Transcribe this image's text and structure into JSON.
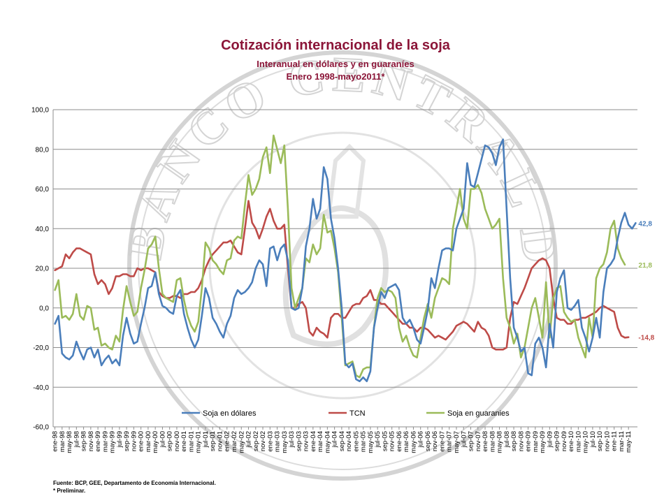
{
  "title": "Cotización internacional de la soja",
  "subtitle1": "Interanual en dólares y en guaraníes",
  "subtitle2": "Enero 1998-mayo2011*",
  "footnote1": "Fuente: BCP, GEE, Departamento de Economía Internacional.",
  "footnote2": "* Preliminar.",
  "watermark": "BANCO CENTRAL DEL PARAGUAY",
  "chart_data": {
    "type": "line",
    "title": "Cotización internacional de la soja",
    "ylim": [
      -60,
      100
    ],
    "yticks": [
      "100,0",
      "80,0",
      "60,0",
      "40,0",
      "20,0",
      "0,0",
      "-20,0",
      "-40,0",
      "-60,0"
    ],
    "ytick_values": [
      100,
      80,
      60,
      40,
      20,
      0,
      -20,
      -40,
      -60
    ],
    "grid": true,
    "legend_position": "bottom",
    "x_tick_labels": [
      "ene-98",
      "mar-98",
      "may-98",
      "jul-98",
      "sep-98",
      "nov-98",
      "ene-99",
      "mar-99",
      "may-99",
      "jul-99",
      "sep-99",
      "nov-99",
      "ene-00",
      "mar-00",
      "may-00",
      "jul-00",
      "sep-00",
      "nov-00",
      "ene-01",
      "mar-01",
      "may-01",
      "jul-01",
      "sep-01",
      "nov-01",
      "ene-02",
      "mar-02",
      "may-02",
      "jul-02",
      "sep-02",
      "nov-02",
      "ene-03",
      "mar-03",
      "may-03",
      "jul-03",
      "sep-03",
      "nov-03",
      "ene-04",
      "mar-04",
      "may-04",
      "jul-04",
      "sep-04",
      "nov-04",
      "ene-05",
      "mar-05",
      "may-05",
      "jul-05",
      "sep-05",
      "nov-05",
      "ene-06",
      "mar-06",
      "may-06",
      "jul-06",
      "sep-06",
      "nov-06",
      "ene-07",
      "mar-07",
      "may-07",
      "jul-07",
      "sep-07",
      "nov-07",
      "ene-08",
      "mar-08",
      "may-08",
      "jul-08",
      "sep-08",
      "nov-08",
      "ene-09",
      "mar-09",
      "may-09",
      "jul-09",
      "sep-09",
      "nov-09",
      "ene-10",
      "mar-10",
      "may-10",
      "jul-10",
      "sep-10",
      "nov-10",
      "ene-11",
      "mar-11",
      "may-11"
    ],
    "series": [
      {
        "name": "Soja en dólares",
        "color": "#4a7ebb",
        "end_label": "42,8",
        "values": [
          -8,
          -4,
          -23,
          -25,
          -26,
          -24,
          -17,
          -22,
          -26,
          -21,
          -20,
          -25,
          -21,
          -29,
          -26,
          -24,
          -28,
          -26,
          -29,
          -14,
          -5,
          -13,
          -18,
          -17,
          -8,
          0,
          10,
          11,
          18,
          7,
          1,
          0,
          -2,
          -3,
          6,
          9,
          -3,
          -10,
          -16,
          -20,
          -16,
          -4,
          10,
          5,
          -5,
          -8,
          -12,
          -15,
          -8,
          -4,
          5,
          9,
          7,
          8,
          10,
          13,
          20,
          24,
          22,
          11,
          30,
          31,
          24,
          30,
          32,
          24,
          0,
          -1,
          0,
          10,
          31,
          40,
          55,
          45,
          50,
          71,
          65,
          45,
          35,
          20,
          0,
          -28,
          -30,
          -28,
          -36,
          -37,
          -35,
          -37,
          -32,
          -10,
          0,
          8,
          5,
          10,
          11,
          12,
          9,
          -5,
          -8,
          -6,
          -10,
          -16,
          -18,
          -10,
          -1,
          15,
          10,
          20,
          29,
          30,
          30,
          29,
          40,
          45,
          50,
          73,
          62,
          61,
          68,
          75,
          82,
          81,
          78,
          72,
          81,
          85,
          50,
          15,
          -10,
          -15,
          -22,
          -20,
          -33,
          -34,
          -18,
          -15,
          -20,
          -30,
          -8,
          -20,
          8,
          15,
          19,
          0,
          -1,
          1,
          4,
          -10,
          -15,
          -22,
          -15,
          -5,
          -15,
          8,
          20,
          22,
          25,
          35,
          43,
          48,
          42,
          40,
          42.8
        ]
      },
      {
        "name": "TCN",
        "color": "#be4b48",
        "end_label": "-14,8",
        "values": [
          19,
          20,
          21,
          27,
          25,
          28,
          30,
          30,
          29,
          28,
          27,
          17,
          12,
          14,
          12,
          7,
          10,
          16,
          16,
          17,
          17,
          16,
          16,
          20,
          19,
          20,
          20,
          19,
          18,
          8,
          6,
          5,
          5,
          6,
          6,
          5,
          7,
          7,
          8,
          8,
          10,
          14,
          20,
          24,
          27,
          29,
          31,
          33,
          33,
          34,
          31,
          28,
          27,
          40,
          54,
          43,
          40,
          35,
          40,
          46,
          50,
          44,
          40,
          40,
          42,
          20,
          0,
          0,
          2,
          3,
          0,
          -12,
          -14,
          -10,
          -12,
          -13,
          -15,
          -5,
          -3,
          -3,
          -5,
          -5,
          -2,
          1,
          2,
          2,
          5,
          6,
          9,
          4,
          4,
          2,
          2,
          0,
          -2,
          -4,
          -6,
          -8,
          -8,
          -10,
          -10,
          -12,
          -10,
          -10,
          -11,
          -13,
          -15,
          -14,
          -15,
          -16,
          -14,
          -12,
          -9,
          -8,
          -7,
          -8,
          -10,
          -12,
          -7,
          -10,
          -11,
          -14,
          -20,
          -21,
          -21,
          -21,
          -20,
          -5,
          3,
          2,
          6,
          10,
          15,
          20,
          22,
          24,
          25,
          24,
          20,
          5,
          -5,
          -6,
          -6,
          -8,
          -8,
          -6,
          -6,
          -5,
          -5,
          -4,
          -3,
          -2,
          0,
          1,
          0,
          -1,
          -2,
          -10,
          -14,
          -15,
          -14.8
        ]
      },
      {
        "name": "Soja en guaranies",
        "color": "#9bbb59",
        "end_label": "21,8",
        "values": [
          9,
          14,
          -5,
          -4,
          -6,
          -3,
          7,
          -4,
          -6,
          1,
          0,
          -11,
          -10,
          -19,
          -18,
          -20,
          -21,
          -14,
          -17,
          -1,
          11,
          3,
          -4,
          -2,
          10,
          19,
          30,
          32,
          36,
          20,
          7,
          5,
          4,
          3,
          14,
          15,
          4,
          -4,
          -9,
          -12,
          -7,
          10,
          33,
          30,
          24,
          22,
          19,
          17,
          24,
          25,
          34,
          36,
          35,
          52,
          67,
          57,
          60,
          65,
          76,
          81,
          68,
          87,
          80,
          73,
          82,
          50,
          10,
          0,
          5,
          10,
          25,
          23,
          32,
          27,
          30,
          47,
          38,
          39,
          30,
          18,
          -5,
          -29,
          -28,
          -27,
          -34,
          -35,
          -31,
          -30,
          -30,
          -10,
          5,
          10,
          8,
          9,
          8,
          5,
          -10,
          -17,
          -14,
          -20,
          -24,
          -25,
          -15,
          -5,
          2,
          -5,
          5,
          10,
          15,
          14,
          12,
          40,
          50,
          60,
          45,
          40,
          60,
          60,
          62,
          58,
          50,
          45,
          40,
          42,
          45,
          15,
          -5,
          -10,
          -18,
          -13,
          -25,
          -20,
          -10,
          0,
          5,
          -5,
          -15,
          13,
          -15,
          5,
          10,
          11,
          -2,
          -5,
          -7,
          -6,
          -15,
          -20,
          -25,
          -5,
          -15,
          15,
          20,
          22,
          28,
          40,
          44,
          30,
          25,
          21.8
        ]
      }
    ]
  }
}
